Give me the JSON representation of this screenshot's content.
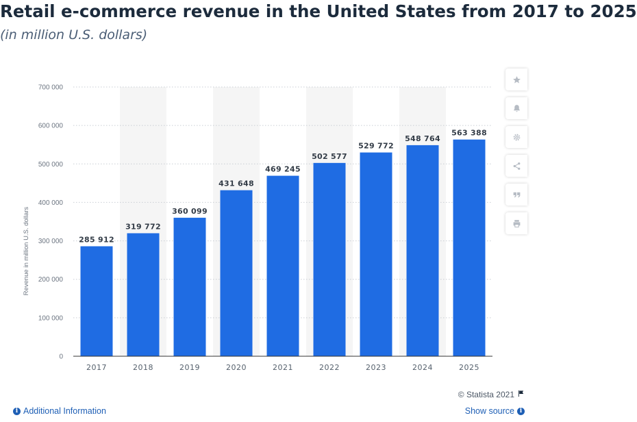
{
  "header": {
    "title": "Retail e-commerce revenue in the United States from 2017 to 2025",
    "subtitle": "(in million U.S. dollars)"
  },
  "chart_data": {
    "type": "bar",
    "categories": [
      "2017",
      "2018",
      "2019",
      "2020",
      "2021",
      "2022",
      "2023",
      "2024",
      "2025"
    ],
    "values": [
      285912,
      319772,
      360099,
      431648,
      469245,
      502577,
      529772,
      548764,
      563388
    ],
    "value_labels": [
      "285 912",
      "319 772",
      "360 099",
      "431 648",
      "469 245",
      "502 577",
      "529 772",
      "548 764",
      "563 388"
    ],
    "ylabel": "Revenue in million U.S. dollars",
    "xlabel": "",
    "ylim": [
      0,
      700000
    ],
    "yticks": [
      0,
      100000,
      200000,
      300000,
      400000,
      500000,
      600000,
      700000
    ],
    "ytick_labels": [
      "0",
      "100 000",
      "200 000",
      "300 000",
      "400 000",
      "500 000",
      "600 000",
      "700 000"
    ],
    "grid": true,
    "bar_color": "#1f6ce3",
    "alt_band_color": "#f5f5f5"
  },
  "toolbar": {
    "buttons": [
      {
        "icon": "star-icon"
      },
      {
        "icon": "bell-icon"
      },
      {
        "icon": "gear-icon"
      },
      {
        "icon": "share-icon"
      },
      {
        "icon": "quote-icon"
      },
      {
        "icon": "print-icon"
      }
    ]
  },
  "footer": {
    "copyright": "© Statista 2021",
    "additional_info": "Additional Information",
    "show_source": "Show source",
    "link_color": "#1e5fb5"
  }
}
